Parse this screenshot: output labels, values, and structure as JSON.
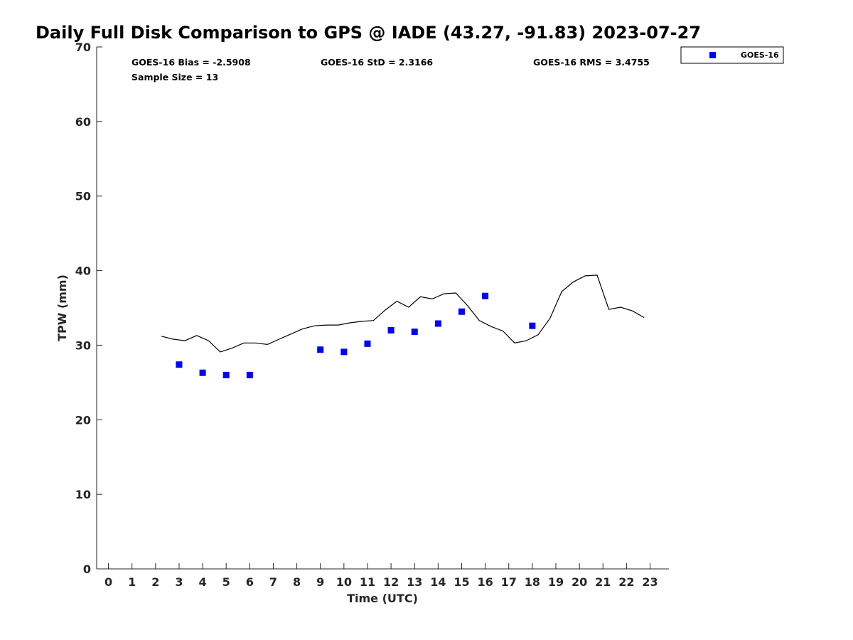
{
  "chart_data": {
    "type": "scatter",
    "title": "Daily Full Disk Comparison to GPS @ IADE (43.27, -91.83) 2023-07-27",
    "xlabel": "Time (UTC)",
    "ylabel": "TPW (mm)",
    "xlim": [
      -0.5,
      23.8
    ],
    "ylim": [
      0,
      70
    ],
    "x_ticks": [
      "0",
      "1",
      "2",
      "3",
      "4",
      "5",
      "6",
      "7",
      "8",
      "9",
      "10",
      "11",
      "12",
      "13",
      "14",
      "15",
      "16",
      "17",
      "18",
      "19",
      "20",
      "21",
      "22",
      "23"
    ],
    "y_ticks": [
      "0",
      "10",
      "20",
      "30",
      "40",
      "50",
      "60",
      "70"
    ],
    "grid": false,
    "legend": {
      "position": "top-right",
      "entries": [
        "GOES-16"
      ]
    },
    "stats": {
      "bias": "GOES-16 Bias = -2.5908",
      "std": "GOES-16 StD = 2.3166",
      "rms": "GOES-16 RMS = 3.4755",
      "sample": "Sample Size = 13"
    },
    "series": [
      {
        "name": "GOES-16",
        "kind": "scatter",
        "color": "#0000ff",
        "x": [
          3,
          4,
          5,
          6,
          9,
          10,
          11,
          12,
          13,
          14,
          15,
          16,
          18
        ],
        "y": [
          27.4,
          26.3,
          26.0,
          26.0,
          29.4,
          29.1,
          30.2,
          32.0,
          31.8,
          32.9,
          34.5,
          36.6,
          32.6
        ]
      },
      {
        "kind": "line",
        "color": "#000000",
        "x": [
          2.25,
          2.75,
          3.25,
          3.75,
          4.25,
          4.75,
          5.25,
          5.75,
          6.25,
          6.75,
          7.25,
          7.75,
          8.25,
          8.75,
          9.25,
          9.75,
          10.25,
          10.75,
          11.25,
          11.75,
          12.25,
          12.75,
          13.25,
          13.75,
          14.25,
          14.75,
          15.25,
          15.75,
          16.25,
          16.75,
          17.25,
          17.75,
          18.25,
          18.75,
          19.25,
          19.75,
          20.25,
          20.75,
          21.25,
          21.75,
          22.25,
          22.75
        ],
        "y": [
          31.2,
          30.8,
          30.6,
          31.3,
          30.6,
          29.1,
          29.6,
          30.3,
          30.3,
          30.1,
          30.8,
          31.5,
          32.2,
          32.6,
          32.7,
          32.7,
          33.0,
          33.2,
          33.3,
          34.7,
          35.9,
          35.1,
          36.5,
          36.2,
          36.9,
          37.0,
          35.3,
          33.3,
          32.5,
          31.9,
          30.3,
          30.6,
          31.4,
          33.6,
          37.2,
          38.5,
          39.3,
          39.4,
          34.8,
          35.1,
          34.6,
          33.7
        ]
      }
    ]
  }
}
